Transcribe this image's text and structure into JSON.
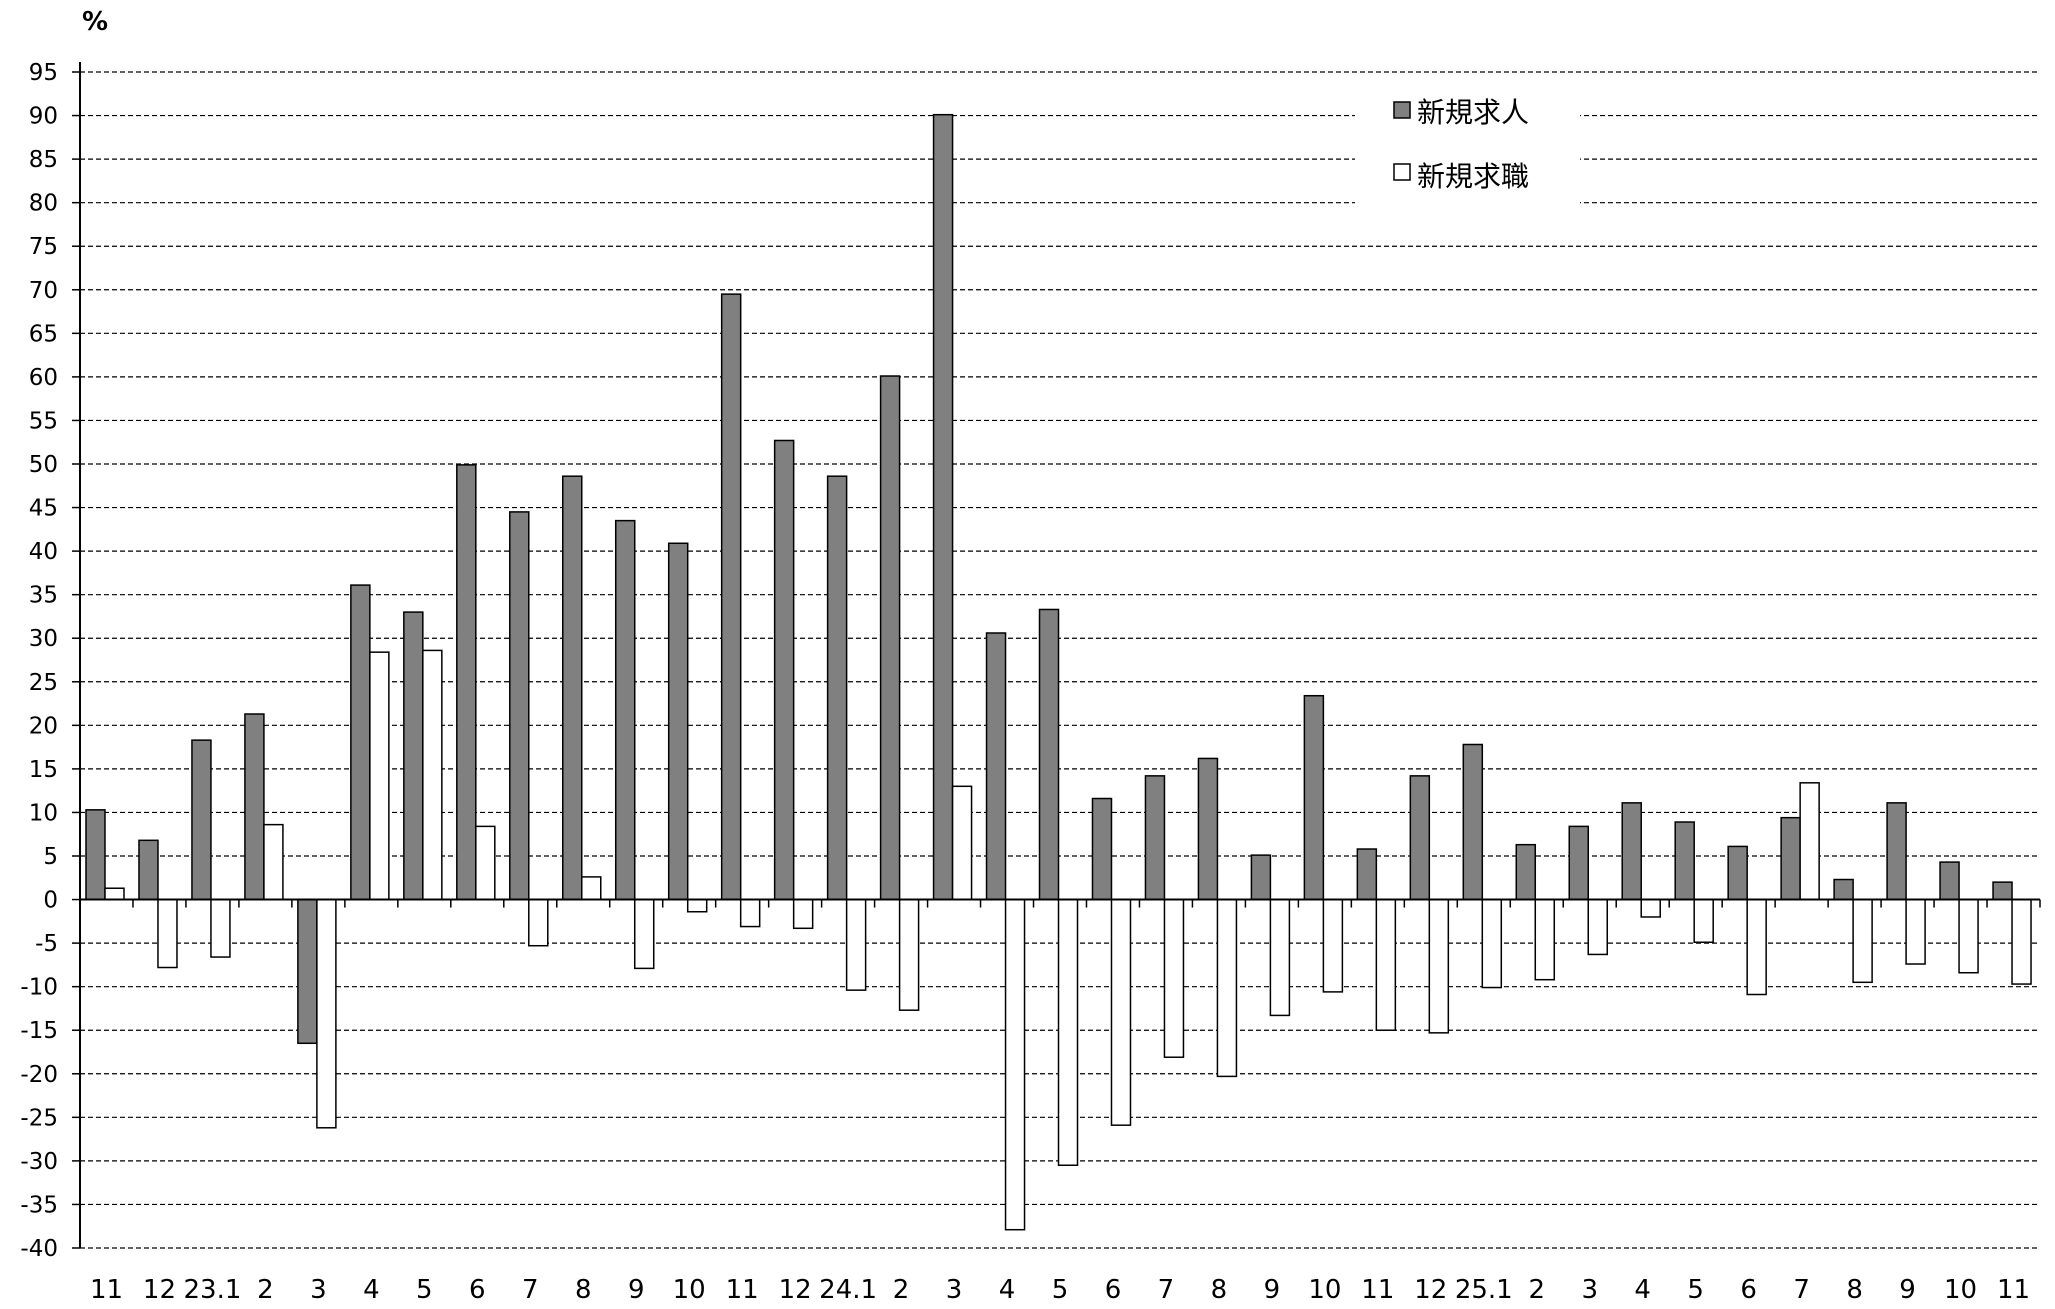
{
  "chart_data": {
    "type": "bar",
    "title": "",
    "unit_label": "%",
    "xlabel": "",
    "ylabel": "",
    "ylim": [
      -40,
      95
    ],
    "y_ticks": [
      95,
      90,
      85,
      80,
      75,
      70,
      65,
      60,
      55,
      50,
      45,
      40,
      35,
      30,
      25,
      20,
      15,
      10,
      5,
      0,
      -5,
      -10,
      -15,
      -20,
      -25,
      -30,
      -35,
      -40
    ],
    "grid": true,
    "legend_position": "top-right",
    "categories": [
      "11",
      "12",
      "23.1",
      "2",
      "3",
      "4",
      "5",
      "6",
      "7",
      "8",
      "9",
      "10",
      "11",
      "12",
      "24.1",
      "2",
      "3",
      "4",
      "5",
      "6",
      "7",
      "8",
      "9",
      "10",
      "11",
      "12",
      "25.1",
      "2",
      "3",
      "4",
      "5",
      "6",
      "7",
      "8",
      "9",
      "10",
      "11"
    ],
    "series": [
      {
        "name": "新規求人",
        "color": "#808080",
        "values": [
          10.3,
          6.8,
          18.3,
          21.3,
          -16.5,
          36.1,
          33.0,
          49.9,
          44.5,
          48.6,
          43.5,
          40.9,
          69.5,
          52.7,
          48.6,
          60.1,
          90.1,
          30.6,
          33.3,
          11.6,
          14.2,
          16.2,
          5.1,
          23.4,
          5.8,
          14.2,
          17.8,
          6.3,
          8.4,
          11.1,
          8.9,
          6.1,
          9.4,
          2.3,
          11.1,
          4.3,
          2.0
        ]
      },
      {
        "name": "新規求職",
        "color": "#ffffff",
        "values": [
          1.3,
          -7.8,
          -6.6,
          8.6,
          -26.2,
          28.4,
          28.6,
          8.4,
          -5.3,
          2.6,
          -7.9,
          -1.4,
          -3.1,
          -3.3,
          -10.4,
          -12.7,
          13.0,
          -37.9,
          -30.5,
          -25.9,
          -18.1,
          -20.3,
          -13.3,
          -10.6,
          -15.0,
          -15.3,
          -10.1,
          -9.2,
          -6.3,
          -2.0,
          -4.9,
          -10.9,
          13.4,
          -9.5,
          -7.4,
          -8.4,
          -9.7
        ]
      }
    ]
  }
}
